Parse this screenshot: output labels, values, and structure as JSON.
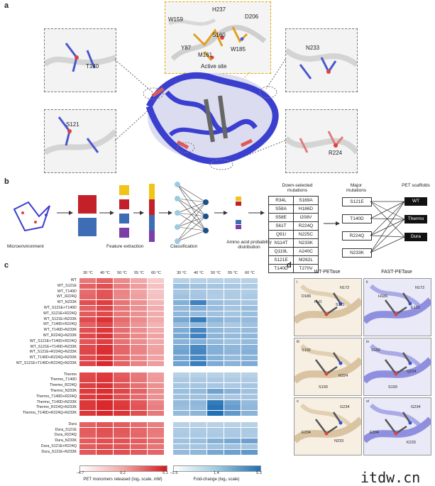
{
  "panels": {
    "a": "a",
    "b": "b",
    "c": "c",
    "d": "d"
  },
  "panel_a": {
    "active_site_label": "Active site",
    "active_site_residues": [
      "H237",
      "W159",
      "D206",
      "S160",
      "Y87",
      "M161",
      "W185"
    ],
    "box_labels": [
      "T140",
      "S121",
      "N233",
      "R224"
    ]
  },
  "panel_b": {
    "steps": [
      "Microenvironment",
      "Feature extraction",
      "Classification",
      "Amino acid probability distribution"
    ],
    "downselected_title": "Down-selected mutations",
    "downselected": [
      [
        "R34L",
        "S169A"
      ],
      [
        "S58A",
        "H186D"
      ],
      [
        "S58E",
        "I208V"
      ],
      [
        "S61T",
        "R224Q"
      ],
      [
        "Q91I",
        "N225C"
      ],
      [
        "N114T",
        "N233K"
      ],
      [
        "Q119L",
        "A240C"
      ],
      [
        "S121E",
        "M262L"
      ],
      [
        "T140D",
        "T270V"
      ]
    ],
    "major_title": "Major mutations",
    "major": [
      "S121E",
      "T140D",
      "R224Q",
      "N233K"
    ],
    "scaffold_title": "PET scaffolds",
    "scaffolds": [
      "WT",
      "Thermo",
      "Dura"
    ]
  },
  "panel_c": {
    "temps": [
      "30 °C",
      "40 °C",
      "50 °C",
      "55 °C",
      "60 °C"
    ],
    "rows": [
      "WT",
      "WT_S121E",
      "WT_T140D",
      "WT_R224Q",
      "WT_N233K",
      "WT_S121E+T140D",
      "WT_S121E+R224Q",
      "WT_S121E+N233K",
      "WT_T140D+R224Q",
      "WT_T140D+N233K",
      "WT_R224Q+N233K",
      "WT_S121E+T140D+R224Q",
      "WT_S121E+T140D+N233K",
      "WT_S121E+R224Q+N233K",
      "WT_T140D+R224Q+N233K",
      "WT_S121E+T140D+R224Q+N233K",
      "",
      "Thermo",
      "Thermo_T140D",
      "Thermo_R224Q",
      "Thermo_N233K",
      "Thermo_T140D+R224Q",
      "Thermo_T140D+N233K",
      "Thermo_R224Q+N233K",
      "Thermo_T140D+R224Q+N233K",
      "",
      "Dura",
      "Dura_S121E",
      "Dura_R224Q",
      "Dura_N233K",
      "Dura_S121E+R224Q",
      "Dura_S121E+N233K"
    ],
    "red_scale": {
      "min": "−4.7",
      "mid": "0.2",
      "max": "5.1",
      "label": "PET monomers released (log₂ scale, mM)"
    },
    "blue_scale": {
      "min": "−2.5",
      "mid": "1.4",
      "max": "5.3",
      "label": "Fold-change (log₂ scale)"
    },
    "red_values": [
      [
        1.0,
        2.0,
        0.3,
        -1.0,
        -2.5
      ],
      [
        2.0,
        2.8,
        0.8,
        -0.5,
        -2.0
      ],
      [
        1.5,
        2.5,
        0.5,
        -0.8,
        -2.2
      ],
      [
        1.8,
        2.6,
        0.4,
        -0.6,
        -2.0
      ],
      [
        2.8,
        3.5,
        1.2,
        0.0,
        -1.5
      ],
      [
        2.0,
        3.2,
        1.0,
        0.0,
        -1.2
      ],
      [
        2.3,
        3.0,
        1.0,
        0.0,
        -1.2
      ],
      [
        3.0,
        4.0,
        1.6,
        0.3,
        -1.0
      ],
      [
        2.0,
        3.0,
        1.0,
        -0.2,
        -1.5
      ],
      [
        2.8,
        3.8,
        1.5,
        0.2,
        -1.0
      ],
      [
        3.0,
        3.9,
        1.5,
        0.3,
        -0.8
      ],
      [
        2.5,
        3.4,
        1.3,
        0.2,
        -1.0
      ],
      [
        3.0,
        4.0,
        1.8,
        0.5,
        -0.8
      ],
      [
        3.2,
        4.2,
        1.8,
        0.6,
        -0.6
      ],
      [
        3.0,
        4.0,
        1.7,
        0.4,
        -0.8
      ],
      [
        3.2,
        4.4,
        2.0,
        0.6,
        -0.5
      ],
      null,
      [
        3.0,
        3.6,
        2.2,
        1.0,
        -0.5
      ],
      [
        3.2,
        3.8,
        2.5,
        1.2,
        -0.3
      ],
      [
        3.4,
        4.0,
        2.6,
        1.4,
        0.0
      ],
      [
        3.6,
        4.2,
        3.2,
        2.0,
        0.2
      ],
      [
        3.6,
        4.2,
        2.8,
        1.6,
        0.0
      ],
      [
        3.8,
        4.4,
        3.6,
        2.4,
        0.5
      ],
      [
        3.8,
        4.4,
        3.8,
        2.6,
        0.8
      ],
      [
        3.8,
        4.5,
        3.9,
        2.8,
        1.0
      ],
      null,
      [
        2.0,
        2.5,
        2.2,
        1.5,
        0.8
      ],
      [
        2.2,
        2.7,
        2.4,
        1.7,
        1.0
      ],
      [
        2.1,
        2.6,
        2.3,
        1.8,
        0.9
      ],
      [
        2.3,
        2.8,
        2.6,
        2.2,
        1.5
      ],
      [
        2.2,
        2.7,
        2.5,
        2.0,
        1.2
      ],
      [
        2.4,
        2.9,
        2.8,
        2.4,
        1.8
      ]
    ],
    "blue_values": [
      [
        0.0,
        0.0,
        0.0,
        0.0,
        0.0
      ],
      [
        1.0,
        0.8,
        0.6,
        0.5,
        0.3
      ],
      [
        0.5,
        0.5,
        0.3,
        0.3,
        0.2
      ],
      [
        0.8,
        0.6,
        0.2,
        0.3,
        0.4
      ],
      [
        1.8,
        4.2,
        1.0,
        0.8,
        0.6
      ],
      [
        1.2,
        1.8,
        1.0,
        0.6,
        1.0
      ],
      [
        1.4,
        1.2,
        0.8,
        0.6,
        1.0
      ],
      [
        2.2,
        4.5,
        1.6,
        1.2,
        1.2
      ],
      [
        1.0,
        1.2,
        0.8,
        0.4,
        0.8
      ],
      [
        2.0,
        4.0,
        1.4,
        1.0,
        1.2
      ],
      [
        2.2,
        4.2,
        1.5,
        1.2,
        1.4
      ],
      [
        1.6,
        1.8,
        1.2,
        0.8,
        1.2
      ],
      [
        2.2,
        3.8,
        1.8,
        1.4,
        1.6
      ],
      [
        2.5,
        4.0,
        1.8,
        1.5,
        1.8
      ],
      [
        2.2,
        3.8,
        1.7,
        1.2,
        1.6
      ],
      [
        2.5,
        4.4,
        2.0,
        1.6,
        2.0
      ],
      null,
      [
        0.0,
        0.0,
        0.0,
        0.0,
        0.0
      ],
      [
        0.4,
        0.4,
        0.4,
        0.3,
        0.3
      ],
      [
        0.6,
        0.6,
        0.5,
        0.4,
        0.6
      ],
      [
        1.0,
        1.2,
        2.5,
        1.6,
        0.8
      ],
      [
        0.8,
        0.8,
        0.8,
        0.5,
        0.6
      ],
      [
        1.2,
        1.4,
        4.6,
        2.4,
        1.2
      ],
      [
        1.0,
        1.2,
        5.0,
        2.8,
        1.4
      ],
      [
        1.2,
        1.5,
        5.2,
        3.0,
        1.6
      ],
      null,
      [
        0.0,
        0.0,
        0.0,
        0.0,
        0.0
      ],
      [
        0.3,
        0.3,
        0.3,
        0.4,
        0.4
      ],
      [
        0.4,
        0.4,
        0.4,
        0.4,
        0.3
      ],
      [
        0.8,
        1.0,
        1.8,
        2.2,
        2.6
      ],
      [
        0.6,
        0.6,
        0.8,
        0.8,
        0.6
      ],
      [
        1.2,
        1.4,
        2.2,
        2.6,
        3.0
      ]
    ]
  },
  "panel_d": {
    "col_titles": [
      "WT-PETase",
      "FAST-PETase"
    ],
    "roman": [
      "i",
      "ii",
      "iii",
      "iv",
      "v",
      "vi"
    ],
    "labels": [
      [
        "D186",
        "N172",
        "H₂O",
        "S121"
      ],
      [
        "H186",
        "N172",
        "E121"
      ],
      [
        "S192",
        "R224",
        "S193"
      ],
      [
        "S192",
        "Q224",
        "S193"
      ],
      [
        "E204",
        "G234",
        "N233"
      ],
      [
        "E204",
        "G234",
        "K233"
      ]
    ]
  },
  "colors": {
    "red_max": "#d7191c",
    "blue_max": "#1f6eb4",
    "protein_blue": "#3b3fd0",
    "protein_red": "#e05a5a"
  },
  "watermark": "itdw.cn"
}
